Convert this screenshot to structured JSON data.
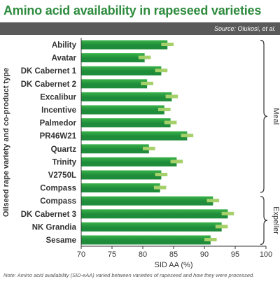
{
  "header": {
    "title": "Amino acid availability in rapeseed varieties",
    "source": "Source: Olukosi, et al."
  },
  "footer": {
    "note": "Note: Amino acid availability (SID-eAA) varied between varieties of rapeseed and how they were processed."
  },
  "colors": {
    "title": "#2e8b3e",
    "bar": "#1e8c3a",
    "bar_light": "#3ab34a",
    "error": "#a6d06a",
    "source_bar": "#5a5a5a"
  },
  "chart_data": {
    "type": "bar",
    "orientation": "horizontal",
    "categories": [
      "Ability",
      "Avatar",
      "DK Cabernet 1",
      "DK Cabernet 2",
      "Excalibur",
      "Incentive",
      "Palmedor",
      "PR46W21",
      "Quartz",
      "Trinity",
      "V2750L",
      "Compass",
      "Compass",
      "DK Cabernet 3",
      "NK Grandia",
      "Sesame"
    ],
    "groups": [
      {
        "name": "Meal",
        "start": 0,
        "end": 11
      },
      {
        "name": "Expeller",
        "start": 12,
        "end": 15
      }
    ],
    "values": [
      84.0,
      80.3,
      83.0,
      80.7,
      84.7,
      83.5,
      84.5,
      87.2,
      81.0,
      85.5,
      83.0,
      82.8,
      91.4,
      93.8,
      92.8,
      91.0
    ],
    "errors": [
      1.0,
      1.0,
      1.0,
      1.0,
      1.0,
      1.0,
      1.0,
      1.0,
      1.0,
      1.0,
      1.0,
      1.0,
      1.0,
      1.0,
      1.0,
      1.0
    ],
    "xlabel": "SID AA (%)",
    "ylabel": "Oilseed rape variety and co-product type",
    "xlim": [
      70,
      100
    ],
    "xticks": [
      70,
      75,
      80,
      85,
      90,
      95,
      100
    ],
    "grid": false
  }
}
